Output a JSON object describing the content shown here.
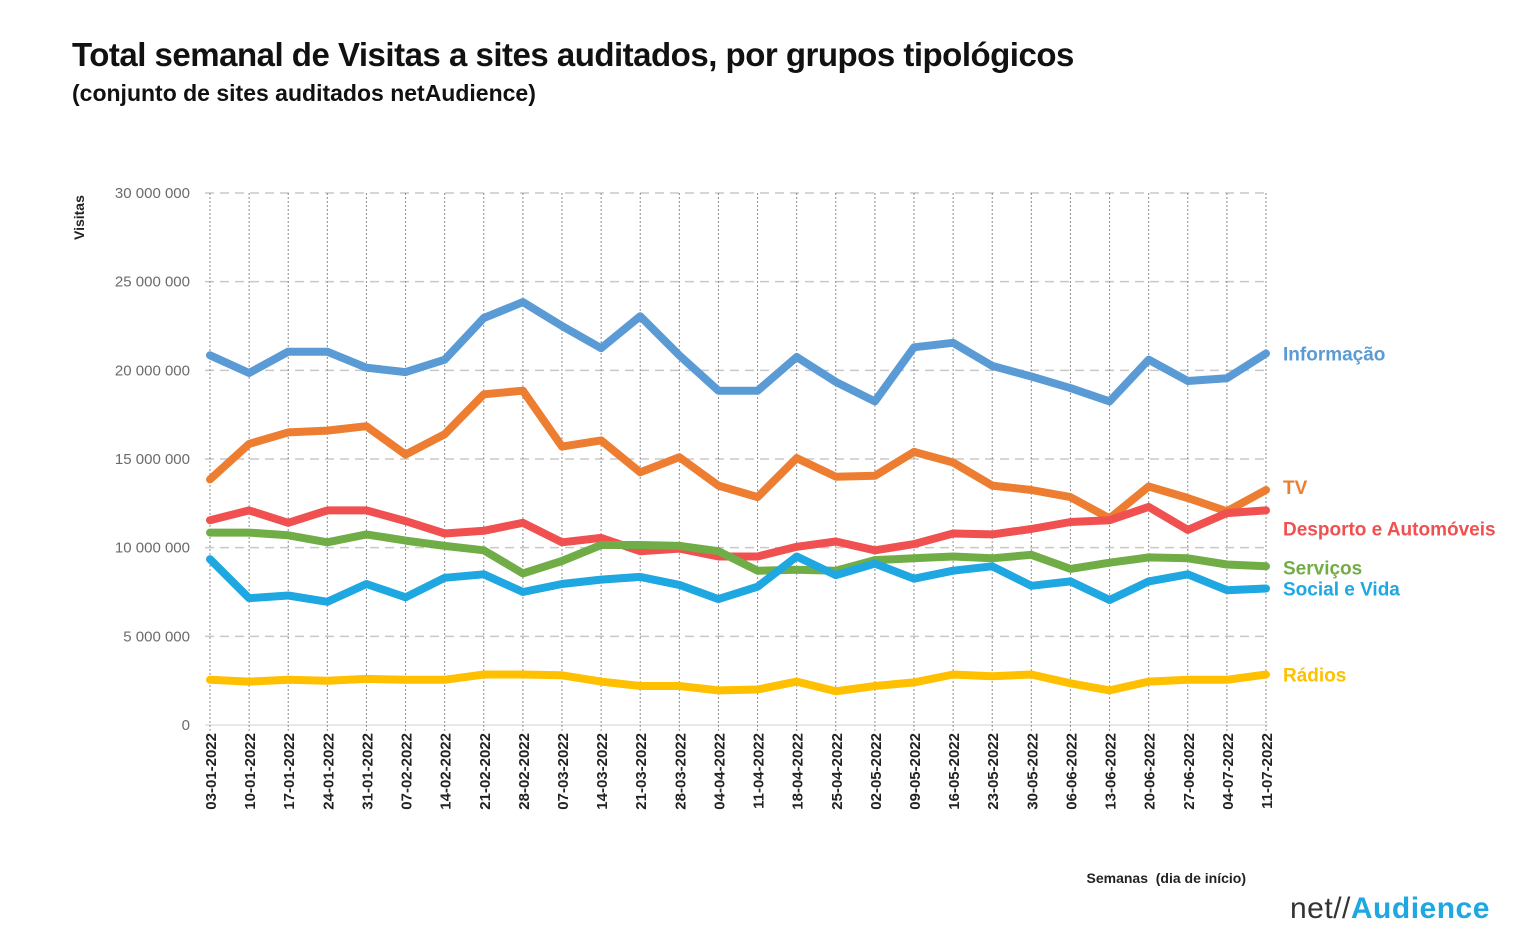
{
  "title": "Total semanal de Visitas a sites auditados, por grupos tipológicos",
  "subtitle": "(conjunto de sites auditados netAudience)",
  "logo": {
    "prefix": "net//",
    "brand": "Audience"
  },
  "chart_data": {
    "type": "line",
    "ylabel": "Visitas",
    "xlabel": "Semanas  (dia de início)",
    "ylim": [
      0,
      30000000
    ],
    "yticks": [
      0,
      5000000,
      10000000,
      15000000,
      20000000,
      25000000,
      30000000
    ],
    "ytick_labels": [
      "0",
      "5 000 000",
      "10 000 000",
      "15 000 000",
      "20 000 000",
      "25 000 000",
      "30 000 000"
    ],
    "grid": "horizontal dashed, vertical dotted",
    "categories": [
      "03-01-2022",
      "10-01-2022",
      "17-01-2022",
      "24-01-2022",
      "31-01-2022",
      "07-02-2022",
      "14-02-2022",
      "21-02-2022",
      "28-02-2022",
      "07-03-2022",
      "14-03-2022",
      "21-03-2022",
      "28-03-2022",
      "04-04-2022",
      "11-04-2022",
      "18-04-2022",
      "25-04-2022",
      "02-05-2022",
      "09-05-2022",
      "16-05-2022",
      "23-05-2022",
      "30-05-2022",
      "06-06-2022",
      "13-06-2022",
      "20-06-2022",
      "27-06-2022",
      "04-07-2022",
      "11-07-2022"
    ],
    "series": [
      {
        "name": "Informação",
        "color": "#5b9bd5",
        "values": [
          20850000,
          19850000,
          21050000,
          21050000,
          20150000,
          19900000,
          20600000,
          22950000,
          23850000,
          22500000,
          21250000,
          23050000,
          20850000,
          18850000,
          18850000,
          20750000,
          19350000,
          18250000,
          21300000,
          21550000,
          20250000,
          19650000,
          19000000,
          18250000,
          20600000,
          19400000,
          19550000,
          20950000
        ]
      },
      {
        "name": "TV",
        "color": "#ed7d31",
        "values": [
          13850000,
          15850000,
          16500000,
          16600000,
          16850000,
          15250000,
          16400000,
          18650000,
          18850000,
          15700000,
          16050000,
          14250000,
          15100000,
          13500000,
          12850000,
          15050000,
          14000000,
          14050000,
          15400000,
          14800000,
          13500000,
          13250000,
          12850000,
          11650000,
          13450000,
          12800000,
          12050000,
          13250000
        ]
      },
      {
        "name": "Desporto e Automóveis",
        "color": "#f05050",
        "values": [
          11550000,
          12100000,
          11400000,
          12100000,
          12100000,
          11500000,
          10800000,
          10950000,
          11400000,
          10300000,
          10550000,
          9800000,
          9950000,
          9500000,
          9500000,
          10050000,
          10350000,
          9850000,
          10200000,
          10800000,
          10750000,
          11050000,
          11450000,
          11550000,
          12300000,
          11000000,
          11950000,
          12100000
        ]
      },
      {
        "name": "Serviços",
        "color": "#70ad47",
        "values": [
          10850000,
          10850000,
          10700000,
          10300000,
          10750000,
          10400000,
          10100000,
          9850000,
          8550000,
          9250000,
          10150000,
          10150000,
          10100000,
          9800000,
          8700000,
          8750000,
          8700000,
          9300000,
          9400000,
          9500000,
          9400000,
          9600000,
          8800000,
          9150000,
          9450000,
          9400000,
          9050000,
          8950000
        ]
      },
      {
        "name": "Social e Vida",
        "color": "#1ea7e0",
        "values": [
          9350000,
          7150000,
          7300000,
          6950000,
          7950000,
          7200000,
          8300000,
          8500000,
          7500000,
          7950000,
          8200000,
          8350000,
          7900000,
          7100000,
          7800000,
          9500000,
          8450000,
          9100000,
          8250000,
          8700000,
          8950000,
          7850000,
          8100000,
          7050000,
          8100000,
          8500000,
          7600000,
          7700000
        ]
      },
      {
        "name": "Rádios",
        "color": "#ffc000",
        "values": [
          2550000,
          2450000,
          2550000,
          2500000,
          2600000,
          2550000,
          2550000,
          2850000,
          2850000,
          2800000,
          2450000,
          2200000,
          2200000,
          1950000,
          2000000,
          2450000,
          1900000,
          2200000,
          2400000,
          2850000,
          2750000,
          2850000,
          2350000,
          1950000,
          2450000,
          2550000,
          2550000,
          2850000
        ]
      }
    ]
  }
}
